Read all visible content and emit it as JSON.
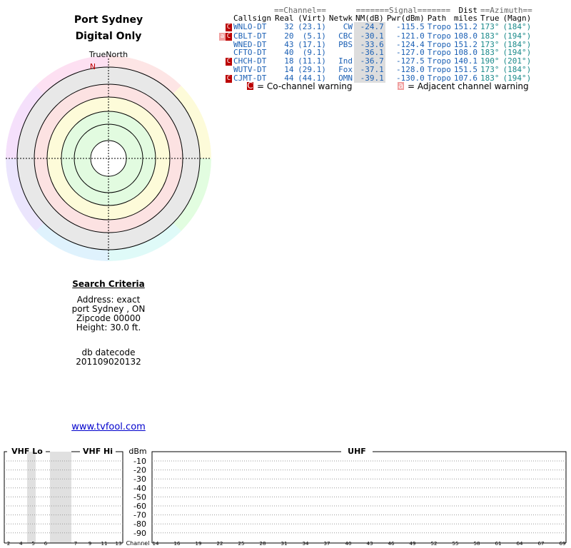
{
  "header": {
    "location": "Port Sydney",
    "mode": "Digital Only"
  },
  "polar": {
    "north_label": "TrueNorth",
    "n_marker": "N"
  },
  "search": {
    "title": "Search Criteria",
    "address": "Address: exact",
    "city": "port Sydney , ON",
    "zipcode": "Zipcode 00000",
    "height": "Height: 30.0 ft.",
    "db_label": "db datecode",
    "db_code": "201109020132"
  },
  "link": "www.tvfool.com",
  "table": {
    "groups": {
      "channel": "==Channel==",
      "signal": "=======Signal=======",
      "dist": "Dist",
      "azimuth": "==Azimuth=="
    },
    "headers": [
      "Callsign",
      "Real",
      "(Virt)",
      "Netwk",
      "NM(dB)",
      "Pwr(dBm)",
      "Path",
      "miles",
      "True",
      "(Magn)"
    ],
    "rows": [
      {
        "marks": [
          "co"
        ],
        "callsign": "WNLO-DT",
        "real": "32",
        "virt": "(23.1)",
        "netwk": "CW",
        "nm": "-24.7",
        "pwr": "-115.5",
        "path": "Tropo",
        "miles": "151.2",
        "true_az": "173°",
        "magn": "(184°)"
      },
      {
        "marks": [
          "adj",
          "co"
        ],
        "callsign": "CBLT-DT",
        "real": "20",
        "virt": "(5.1)",
        "netwk": "CBC",
        "nm": "-30.1",
        "pwr": "-121.0",
        "path": "Tropo",
        "miles": "108.0",
        "true_az": "183°",
        "magn": "(194°)"
      },
      {
        "marks": [],
        "callsign": "WNED-DT",
        "real": "43",
        "virt": "(17.1)",
        "netwk": "PBS",
        "nm": "-33.6",
        "pwr": "-124.4",
        "path": "Tropo",
        "miles": "151.2",
        "true_az": "173°",
        "magn": "(184°)"
      },
      {
        "marks": [],
        "callsign": "CFTO-DT",
        "real": "40",
        "virt": "(9.1)",
        "netwk": "",
        "nm": "-36.1",
        "pwr": "-127.0",
        "path": "Tropo",
        "miles": "108.0",
        "true_az": "183°",
        "magn": "(194°)"
      },
      {
        "marks": [
          "co"
        ],
        "callsign": "CHCH-DT",
        "real": "18",
        "virt": "(11.1)",
        "netwk": "Ind",
        "nm": "-36.7",
        "pwr": "-127.5",
        "path": "Tropo",
        "miles": "140.1",
        "true_az": "190°",
        "magn": "(201°)"
      },
      {
        "marks": [],
        "callsign": "WUTV-DT",
        "real": "14",
        "virt": "(29.1)",
        "netwk": "Fox",
        "nm": "-37.1",
        "pwr": "-128.0",
        "path": "Tropo",
        "miles": "151.5",
        "true_az": "173°",
        "magn": "(184°)"
      },
      {
        "marks": [
          "co"
        ],
        "callsign": "CJMT-DT",
        "real": "44",
        "virt": "(44.1)",
        "netwk": "OMN",
        "nm": "-39.1",
        "pwr": "-130.0",
        "path": "Tropo",
        "miles": "107.6",
        "true_az": "183°",
        "magn": "(194°)"
      }
    ]
  },
  "legend": {
    "co_icon": "C",
    "co_text": "= Co-channel warning",
    "adj_icon": "a",
    "adj_text": "= Adjacent channel warning"
  },
  "bands": {
    "vhf_lo": "VHF Lo",
    "vhf_hi": "VHF Hi",
    "uhf": "UHF",
    "unit": "dBm",
    "channel_label": "Channel",
    "db_ticks": [
      "-10",
      "-20",
      "-30",
      "-40",
      "-50",
      "-60",
      "-70",
      "-80",
      "-90"
    ],
    "vhf_lo_channels": [
      "2",
      "4",
      "5",
      "6"
    ],
    "vhf_hi_channels": [
      "7",
      "9",
      "11",
      "13"
    ],
    "uhf_channels": [
      "14",
      "16",
      "19",
      "22",
      "25",
      "28",
      "31",
      "34",
      "37",
      "40",
      "43",
      "46",
      "49",
      "52",
      "55",
      "58",
      "61",
      "64",
      "67",
      "69"
    ]
  },
  "colors": {
    "co_channel": "#bb0000",
    "adjacent": "#f0a0a0",
    "link_blue": "#1a5fb4",
    "azimuth_teal": "#1a8a8a"
  }
}
